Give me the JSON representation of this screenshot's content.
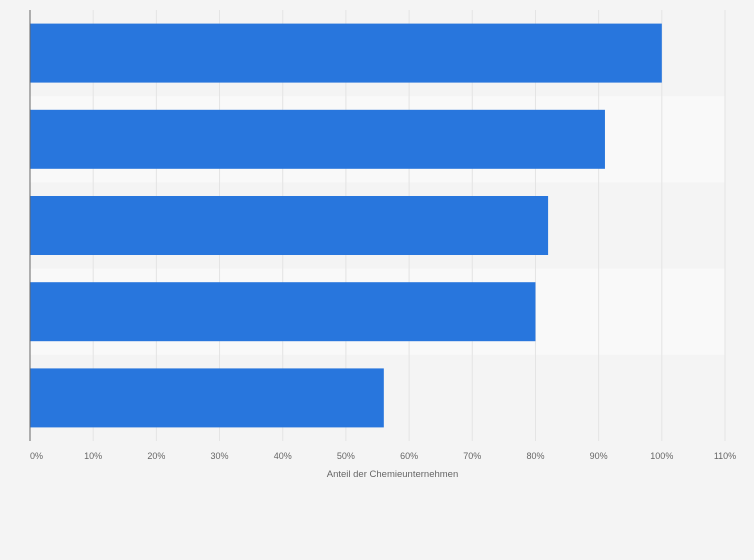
{
  "chart_data": {
    "type": "bar",
    "orientation": "horizontal",
    "categories": [
      "",
      "",
      "",
      "",
      ""
    ],
    "values": [
      100,
      91,
      82,
      80,
      56
    ],
    "title": "",
    "xlabel": "Anteil der Chemieunternehmen",
    "ylabel": "",
    "xlim": [
      0,
      110
    ],
    "x_ticks": [
      0,
      10,
      20,
      30,
      40,
      50,
      60,
      70,
      80,
      90,
      100,
      110
    ],
    "x_tick_labels": [
      "0%",
      "10%",
      "20%",
      "30%",
      "40%",
      "50%",
      "60%",
      "70%",
      "80%",
      "90%",
      "100%",
      "110%"
    ],
    "grid": true,
    "legend": "none",
    "colors": {
      "bar": "#2876dd",
      "background": "#f4f4f4",
      "band_alt": "#f9f9f9",
      "grid": "#e4e4e4",
      "axis": "#666666",
      "text": "#666666"
    }
  }
}
